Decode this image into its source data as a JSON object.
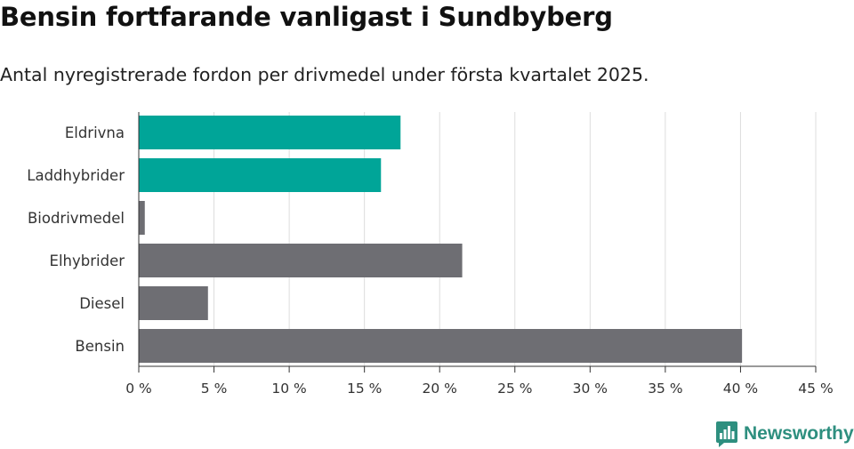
{
  "title": "Bensin fortfarande vanligast i Sundbyberg",
  "subtitle": "Antal nyregistrerade fordon per drivmedel under första kvartalet 2025.",
  "brand": {
    "name": "Newsworthy",
    "color": "#2e8f7f",
    "icon": "bar-chart-badge-icon"
  },
  "chart_data": {
    "type": "bar",
    "orientation": "horizontal",
    "categories": [
      "Eldrivna",
      "Laddhybrider",
      "Biodrivmedel",
      "Elhybrider",
      "Diesel",
      "Bensin"
    ],
    "values": [
      17.4,
      16.1,
      0.4,
      21.5,
      4.6,
      40.1
    ],
    "colors": [
      "#00a598",
      "#00a598",
      "#6e6e73",
      "#6e6e73",
      "#6e6e73",
      "#6e6e73"
    ],
    "xlim": [
      0,
      45
    ],
    "xticks": [
      0,
      5,
      10,
      15,
      20,
      25,
      30,
      35,
      40,
      45
    ],
    "tick_labels": [
      "0 %",
      "5 %",
      "10 %",
      "15 %",
      "20 %",
      "25 %",
      "30 %",
      "35 %",
      "40 %",
      "45 %"
    ],
    "grid": "vertical",
    "legend": "none"
  }
}
